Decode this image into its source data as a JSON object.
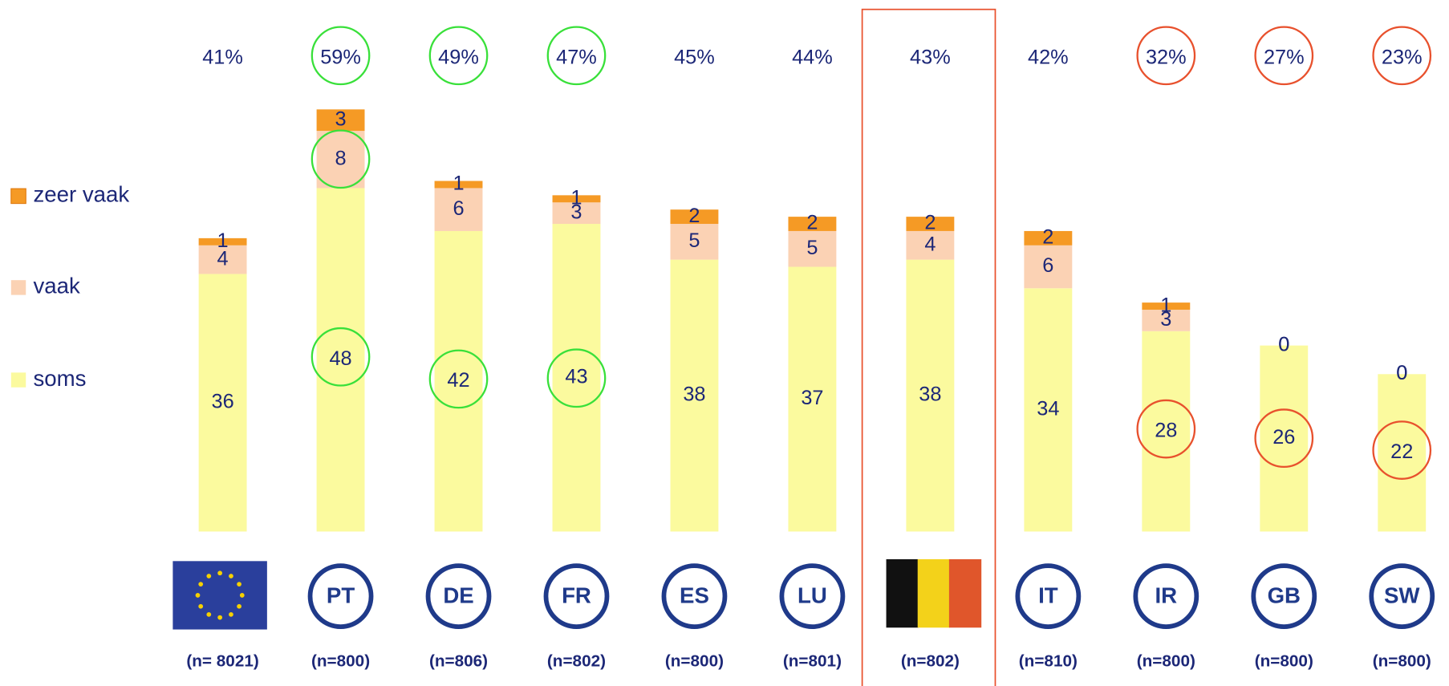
{
  "chart_data": {
    "type": "stacked_bar",
    "categories": [
      null,
      "PT",
      "DE",
      "FR",
      "ES",
      "LU",
      null,
      "IT",
      "IR",
      "GB",
      "SW"
    ],
    "sample_labels": [
      "(n= 8021)",
      "(n=800)",
      "(n=806)",
      "(n=802)",
      "(n=800)",
      "(n=801)",
      "(n=802)",
      "(n=810)",
      "(n=800)",
      "(n=800)",
      "(n=800)"
    ],
    "total_labels": [
      "41%",
      "59%",
      "49%",
      "47%",
      "45%",
      "44%",
      "43%",
      "42%",
      "32%",
      "27%",
      "23%"
    ],
    "series": [
      {
        "name": "soms",
        "color": "#fbfa9e",
        "values": [
          36,
          48,
          42,
          43,
          38,
          37,
          38,
          34,
          28,
          26,
          22
        ]
      },
      {
        "name": "vaak",
        "color": "#fbd2b4",
        "values": [
          4,
          8,
          6,
          3,
          5,
          5,
          4,
          6,
          3,
          0,
          0
        ]
      },
      {
        "name": "zeer vaak",
        "color": "#f59a25",
        "values": [
          1,
          3,
          1,
          1,
          2,
          2,
          2,
          2,
          1,
          0,
          0
        ]
      }
    ],
    "ylim": [
      0,
      62
    ]
  }
}
